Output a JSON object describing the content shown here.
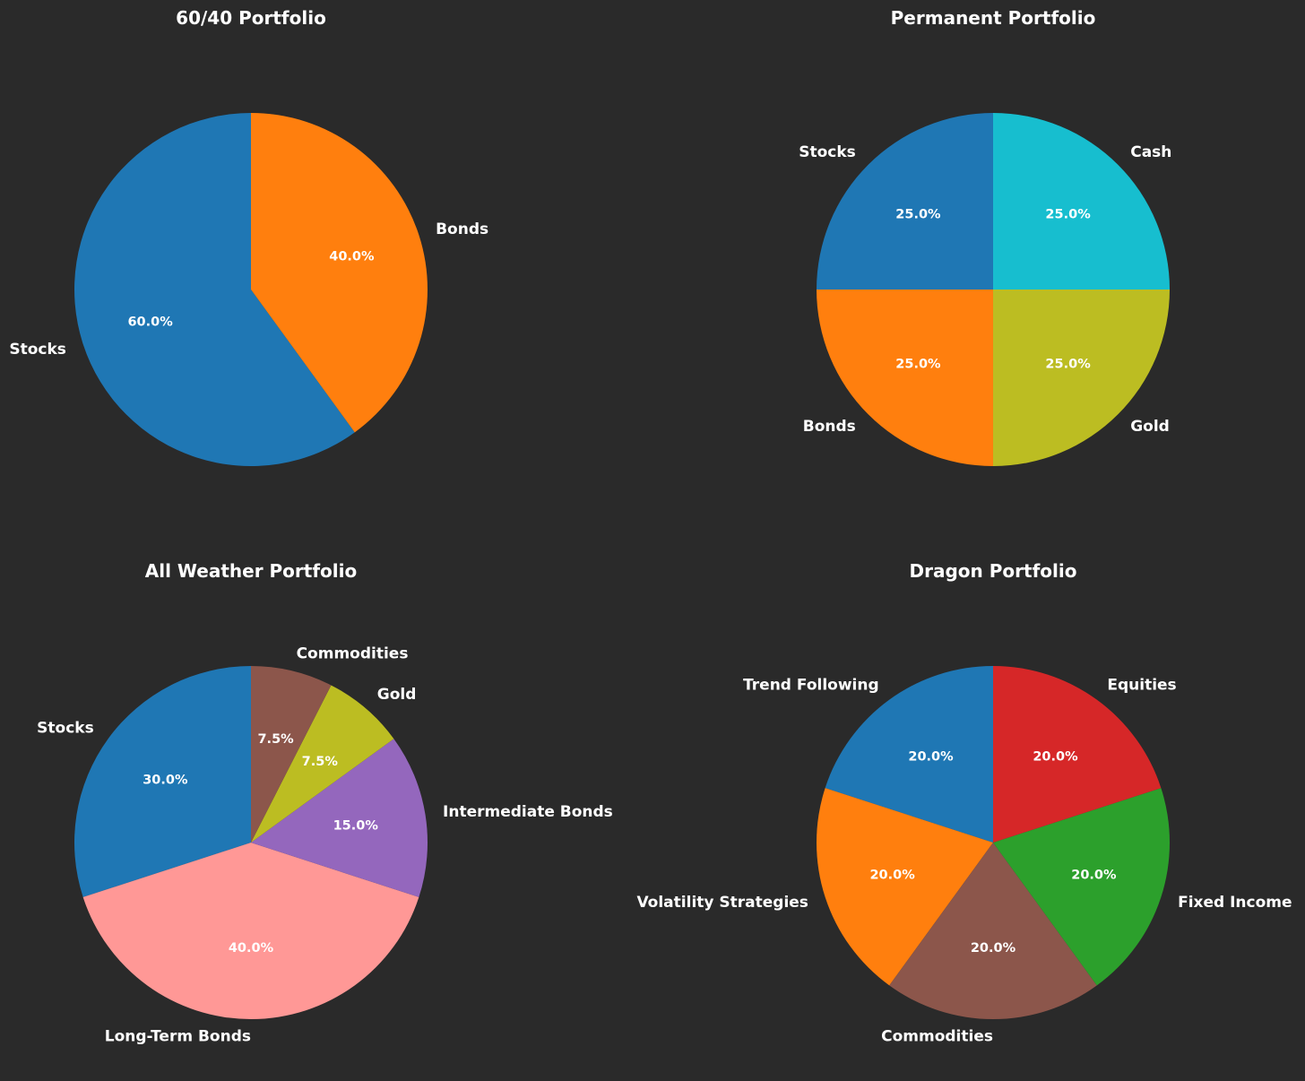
{
  "background": "#2a2a2a",
  "chart_data": [
    {
      "type": "pie",
      "title": "60/40 Portfolio",
      "labels": [
        "Stocks",
        "Bonds"
      ],
      "values": [
        60,
        40
      ],
      "percent_labels": [
        "60.0%",
        "40.0%"
      ],
      "colors": [
        "#1f77b4",
        "#ff7f0e"
      ],
      "start_angle": 90,
      "direction": "counterclockwise"
    },
    {
      "type": "pie",
      "title": "Permanent Portfolio",
      "labels": [
        "Stocks",
        "Bonds",
        "Gold",
        "Cash"
      ],
      "values": [
        25,
        25,
        25,
        25
      ],
      "percent_labels": [
        "25.0%",
        "25.0%",
        "25.0%",
        "25.0%"
      ],
      "colors": [
        "#1f77b4",
        "#ff7f0e",
        "#bcbd22",
        "#17becf"
      ],
      "start_angle": 90,
      "direction": "counterclockwise"
    },
    {
      "type": "pie",
      "title": "All Weather Portfolio",
      "labels": [
        "Stocks",
        "Long-Term Bonds",
        "Intermediate Bonds",
        "Gold",
        "Commodities"
      ],
      "values": [
        30,
        40,
        15,
        7.5,
        7.5
      ],
      "percent_labels": [
        "30.0%",
        "40.0%",
        "15.0%",
        "7.5%",
        "7.5%"
      ],
      "colors": [
        "#1f77b4",
        "#ff9896",
        "#9467bd",
        "#bcbd22",
        "#8c564b"
      ],
      "start_angle": 90,
      "direction": "counterclockwise"
    },
    {
      "type": "pie",
      "title": "Dragon Portfolio",
      "labels": [
        "Trend Following",
        "Volatility Strategies",
        "Commodities",
        "Fixed Income",
        "Equities"
      ],
      "values": [
        20,
        20,
        20,
        20,
        20
      ],
      "percent_labels": [
        "20.0%",
        "20.0%",
        "20.0%",
        "20.0%",
        "20.0%"
      ],
      "colors": [
        "#1f77b4",
        "#ff7f0e",
        "#8c564b",
        "#2ca02c",
        "#d62728"
      ],
      "start_angle": 90,
      "direction": "counterclockwise"
    }
  ]
}
